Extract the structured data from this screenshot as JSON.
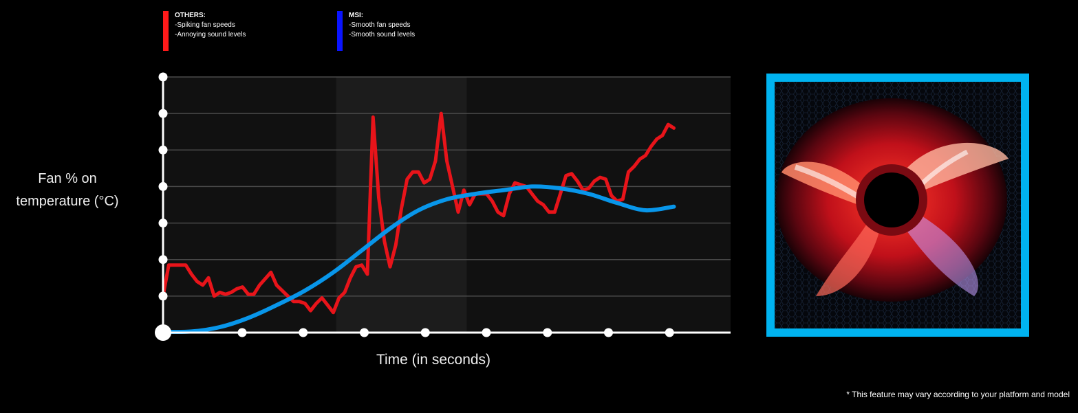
{
  "legend": {
    "others": {
      "title": "OTHERS:",
      "line1": "-Spiking fan speeds",
      "line2": "-Annoying sound levels",
      "color": "#ff1a1a"
    },
    "msi": {
      "title": "MSI:",
      "line1": "-Smooth fan speeds",
      "line2": "-Smooth sound levels",
      "color": "#0a14ff"
    }
  },
  "footnote": "* This feature may vary according to your platform and model",
  "fan_image": {
    "icon": "red-led-case-fan-icon",
    "frame_color": "#00b3f0"
  },
  "chart_data": {
    "type": "line",
    "ylabel": "Fan % on temperature (°C)",
    "xlabel": "Time (in seconds)",
    "x_ticks": 9,
    "y_ticks": 8,
    "xlim": [
      0,
      100
    ],
    "ylim": [
      0,
      7
    ],
    "grid": true,
    "highlight_region": [
      30.5,
      53.5
    ],
    "series": [
      {
        "name": "OTHERS",
        "color": "#e8141a",
        "points": [
          [
            0,
            1
          ],
          [
            1,
            1.85
          ],
          [
            2,
            1.85
          ],
          [
            4,
            1.85
          ],
          [
            5,
            1.6
          ],
          [
            6,
            1.4
          ],
          [
            7,
            1.3
          ],
          [
            8,
            1.5
          ],
          [
            9,
            1
          ],
          [
            10,
            1.1
          ],
          [
            11,
            1.05
          ],
          [
            12,
            1.1
          ],
          [
            13,
            1.2
          ],
          [
            14,
            1.25
          ],
          [
            15,
            1.05
          ],
          [
            16,
            1.05
          ],
          [
            17,
            1.3
          ],
          [
            19,
            1.65
          ],
          [
            20,
            1.3
          ],
          [
            22,
            1
          ],
          [
            23,
            0.85
          ],
          [
            24,
            0.85
          ],
          [
            25,
            0.8
          ],
          [
            26,
            0.6
          ],
          [
            27,
            0.8
          ],
          [
            28,
            0.95
          ],
          [
            29,
            0.75
          ],
          [
            30,
            0.55
          ],
          [
            31,
            0.95
          ],
          [
            32,
            1.1
          ],
          [
            33,
            1.5
          ],
          [
            34,
            1.8
          ],
          [
            35,
            1.85
          ],
          [
            36,
            1.6
          ],
          [
            37,
            5.9
          ],
          [
            38,
            3.7
          ],
          [
            39,
            2.5
          ],
          [
            40,
            1.8
          ],
          [
            41,
            2.4
          ],
          [
            42,
            3.4
          ],
          [
            43,
            4.2
          ],
          [
            44,
            4.4
          ],
          [
            45,
            4.4
          ],
          [
            46,
            4.1
          ],
          [
            47,
            4.2
          ],
          [
            48,
            4.7
          ],
          [
            49,
            6
          ],
          [
            50,
            4.7
          ],
          [
            51,
            4
          ],
          [
            52,
            3.3
          ],
          [
            53,
            3.9
          ],
          [
            54,
            3.5
          ],
          [
            55,
            3.8
          ],
          [
            56,
            3.8
          ],
          [
            57,
            3.8
          ],
          [
            58,
            3.6
          ],
          [
            59,
            3.3
          ],
          [
            60,
            3.2
          ],
          [
            61,
            3.8
          ],
          [
            62,
            4.1
          ],
          [
            63,
            4.05
          ],
          [
            64,
            4
          ],
          [
            65,
            3.8
          ],
          [
            66,
            3.6
          ],
          [
            67,
            3.5
          ],
          [
            68,
            3.3
          ],
          [
            69,
            3.3
          ],
          [
            70,
            3.8
          ],
          [
            71,
            4.3
          ],
          [
            72,
            4.35
          ],
          [
            73,
            4.15
          ],
          [
            74,
            3.9
          ],
          [
            75,
            3.95
          ],
          [
            76,
            4.15
          ],
          [
            77,
            4.25
          ],
          [
            78,
            4.2
          ],
          [
            79,
            3.75
          ],
          [
            80,
            3.6
          ],
          [
            81,
            3.65
          ],
          [
            82,
            4.4
          ],
          [
            83,
            4.55
          ],
          [
            84,
            4.75
          ],
          [
            85,
            4.85
          ],
          [
            86,
            5.1
          ],
          [
            87,
            5.3
          ],
          [
            88,
            5.4
          ],
          [
            89,
            5.7
          ],
          [
            90,
            5.6
          ]
        ]
      },
      {
        "name": "MSI",
        "color": "#0896ea",
        "points": [
          [
            0,
            0.02
          ],
          [
            5,
            0.03
          ],
          [
            10,
            0.15
          ],
          [
            15,
            0.4
          ],
          [
            20,
            0.75
          ],
          [
            25,
            1.15
          ],
          [
            30,
            1.65
          ],
          [
            35,
            2.25
          ],
          [
            40,
            2.85
          ],
          [
            45,
            3.35
          ],
          [
            50,
            3.65
          ],
          [
            55,
            3.8
          ],
          [
            60,
            3.9
          ],
          [
            65,
            4
          ],
          [
            70,
            3.95
          ],
          [
            75,
            3.8
          ],
          [
            80,
            3.55
          ],
          [
            85,
            3.35
          ],
          [
            90,
            3.45
          ]
        ]
      }
    ]
  }
}
